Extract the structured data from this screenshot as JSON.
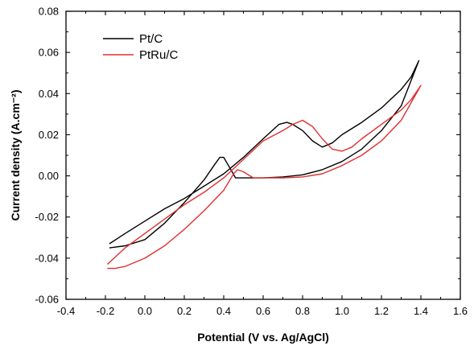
{
  "chart_data": {
    "type": "line",
    "xlabel": "Potential (V vs. Ag/AgCl)",
    "ylabel": "Current density (A.cm⁻²)",
    "xlim": [
      -0.4,
      1.6
    ],
    "ylim": [
      -0.06,
      0.08
    ],
    "x_ticks": [
      "-0.4",
      "-0.2",
      "0.0",
      "0.2",
      "0.4",
      "0.6",
      "0.8",
      "1.0",
      "1.2",
      "1.4",
      "1.6"
    ],
    "y_ticks": [
      "-0.06",
      "-0.04",
      "-0.02",
      "0.00",
      "0.02",
      "0.04",
      "0.06",
      "0.08"
    ],
    "grid": false,
    "legend_position": "top-left",
    "series": [
      {
        "name": "Pt/C",
        "color": "#000000",
        "points": [
          [
            -0.18,
            -0.035
          ],
          [
            -0.1,
            -0.034
          ],
          [
            0.0,
            -0.031
          ],
          [
            0.1,
            -0.023
          ],
          [
            0.2,
            -0.013
          ],
          [
            0.3,
            -0.002
          ],
          [
            0.35,
            0.005
          ],
          [
            0.38,
            0.009
          ],
          [
            0.4,
            0.009
          ],
          [
            0.43,
            0.004
          ],
          [
            0.46,
            -0.001
          ],
          [
            0.5,
            -0.001
          ],
          [
            0.6,
            -0.001
          ],
          [
            0.7,
            -0.0005
          ],
          [
            0.8,
            0.0005
          ],
          [
            0.9,
            0.003
          ],
          [
            1.0,
            0.007
          ],
          [
            1.1,
            0.013
          ],
          [
            1.2,
            0.022
          ],
          [
            1.3,
            0.034
          ],
          [
            1.39,
            0.056
          ],
          [
            1.35,
            0.048
          ],
          [
            1.3,
            0.042
          ],
          [
            1.2,
            0.033
          ],
          [
            1.1,
            0.026
          ],
          [
            1.0,
            0.02
          ],
          [
            0.95,
            0.016
          ],
          [
            0.9,
            0.014
          ],
          [
            0.85,
            0.017
          ],
          [
            0.8,
            0.022
          ],
          [
            0.75,
            0.025
          ],
          [
            0.72,
            0.026
          ],
          [
            0.68,
            0.025
          ],
          [
            0.6,
            0.018
          ],
          [
            0.5,
            0.009
          ],
          [
            0.4,
            0.001
          ],
          [
            0.3,
            -0.005
          ],
          [
            0.2,
            -0.011
          ],
          [
            0.1,
            -0.016
          ],
          [
            0.0,
            -0.022
          ],
          [
            -0.1,
            -0.028
          ],
          [
            -0.18,
            -0.033
          ]
        ]
      },
      {
        "name": "PtRu/C",
        "color": "#e03030",
        "points": [
          [
            -0.19,
            -0.045
          ],
          [
            -0.15,
            -0.045
          ],
          [
            -0.1,
            -0.044
          ],
          [
            0.0,
            -0.04
          ],
          [
            0.1,
            -0.034
          ],
          [
            0.2,
            -0.026
          ],
          [
            0.3,
            -0.017
          ],
          [
            0.4,
            -0.007
          ],
          [
            0.45,
            0.001
          ],
          [
            0.47,
            0.003
          ],
          [
            0.5,
            0.002
          ],
          [
            0.55,
            -0.001
          ],
          [
            0.6,
            -0.001
          ],
          [
            0.7,
            -0.001
          ],
          [
            0.8,
            -0.0005
          ],
          [
            0.9,
            0.001
          ],
          [
            1.0,
            0.005
          ],
          [
            1.1,
            0.01
          ],
          [
            1.2,
            0.017
          ],
          [
            1.3,
            0.027
          ],
          [
            1.4,
            0.044
          ],
          [
            1.35,
            0.037
          ],
          [
            1.3,
            0.032
          ],
          [
            1.2,
            0.025
          ],
          [
            1.1,
            0.018
          ],
          [
            1.05,
            0.014
          ],
          [
            1.0,
            0.012
          ],
          [
            0.95,
            0.013
          ],
          [
            0.9,
            0.018
          ],
          [
            0.85,
            0.024
          ],
          [
            0.8,
            0.027
          ],
          [
            0.75,
            0.025
          ],
          [
            0.7,
            0.022
          ],
          [
            0.6,
            0.017
          ],
          [
            0.5,
            0.008
          ],
          [
            0.4,
            -0.001
          ],
          [
            0.3,
            -0.008
          ],
          [
            0.2,
            -0.014
          ],
          [
            0.1,
            -0.021
          ],
          [
            0.0,
            -0.028
          ],
          [
            -0.1,
            -0.035
          ],
          [
            -0.19,
            -0.043
          ]
        ]
      }
    ]
  }
}
